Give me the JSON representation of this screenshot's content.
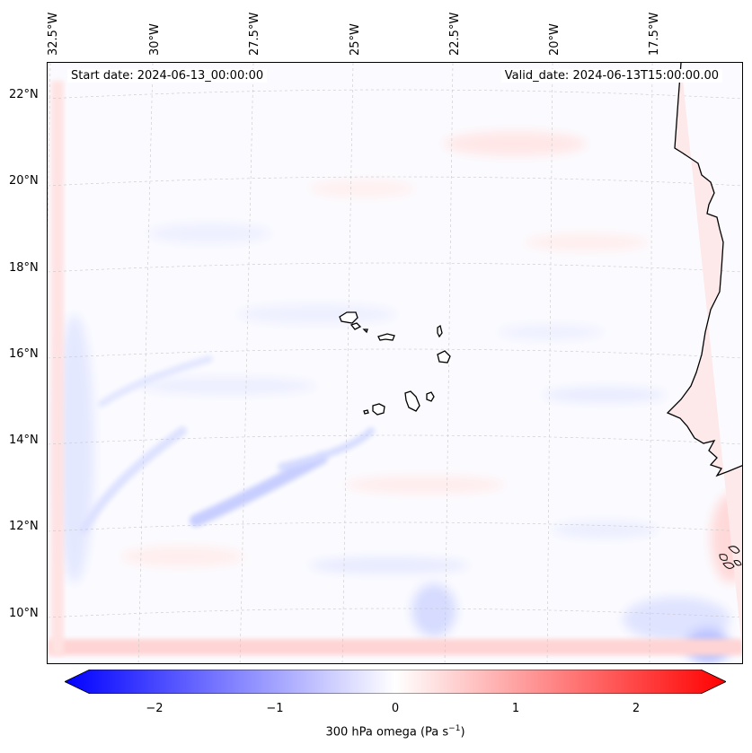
{
  "map": {
    "start_date": "Start date: 2024-06-13_00:00:00",
    "valid_date": "Valid_date: 2024-06-13T15:00:00.00",
    "lon_labels": [
      "32.5°W",
      "30°W",
      "27.5°W",
      "25°W",
      "22.5°W",
      "20°W",
      "17.5°W"
    ],
    "lat_labels": [
      "22°N",
      "20°N",
      "18°N",
      "16°N",
      "14°N",
      "12°N",
      "10°N"
    ]
  },
  "colorbar": {
    "ticks": [
      "−2",
      "−1",
      "0",
      "1",
      "2"
    ],
    "label": "300 hPa omega (Pa s",
    "label_sup": "−1",
    "label_end": ")"
  },
  "colors": {
    "negative": "#0000ff",
    "neutral": "#ffffff",
    "positive": "#ff0000"
  }
}
